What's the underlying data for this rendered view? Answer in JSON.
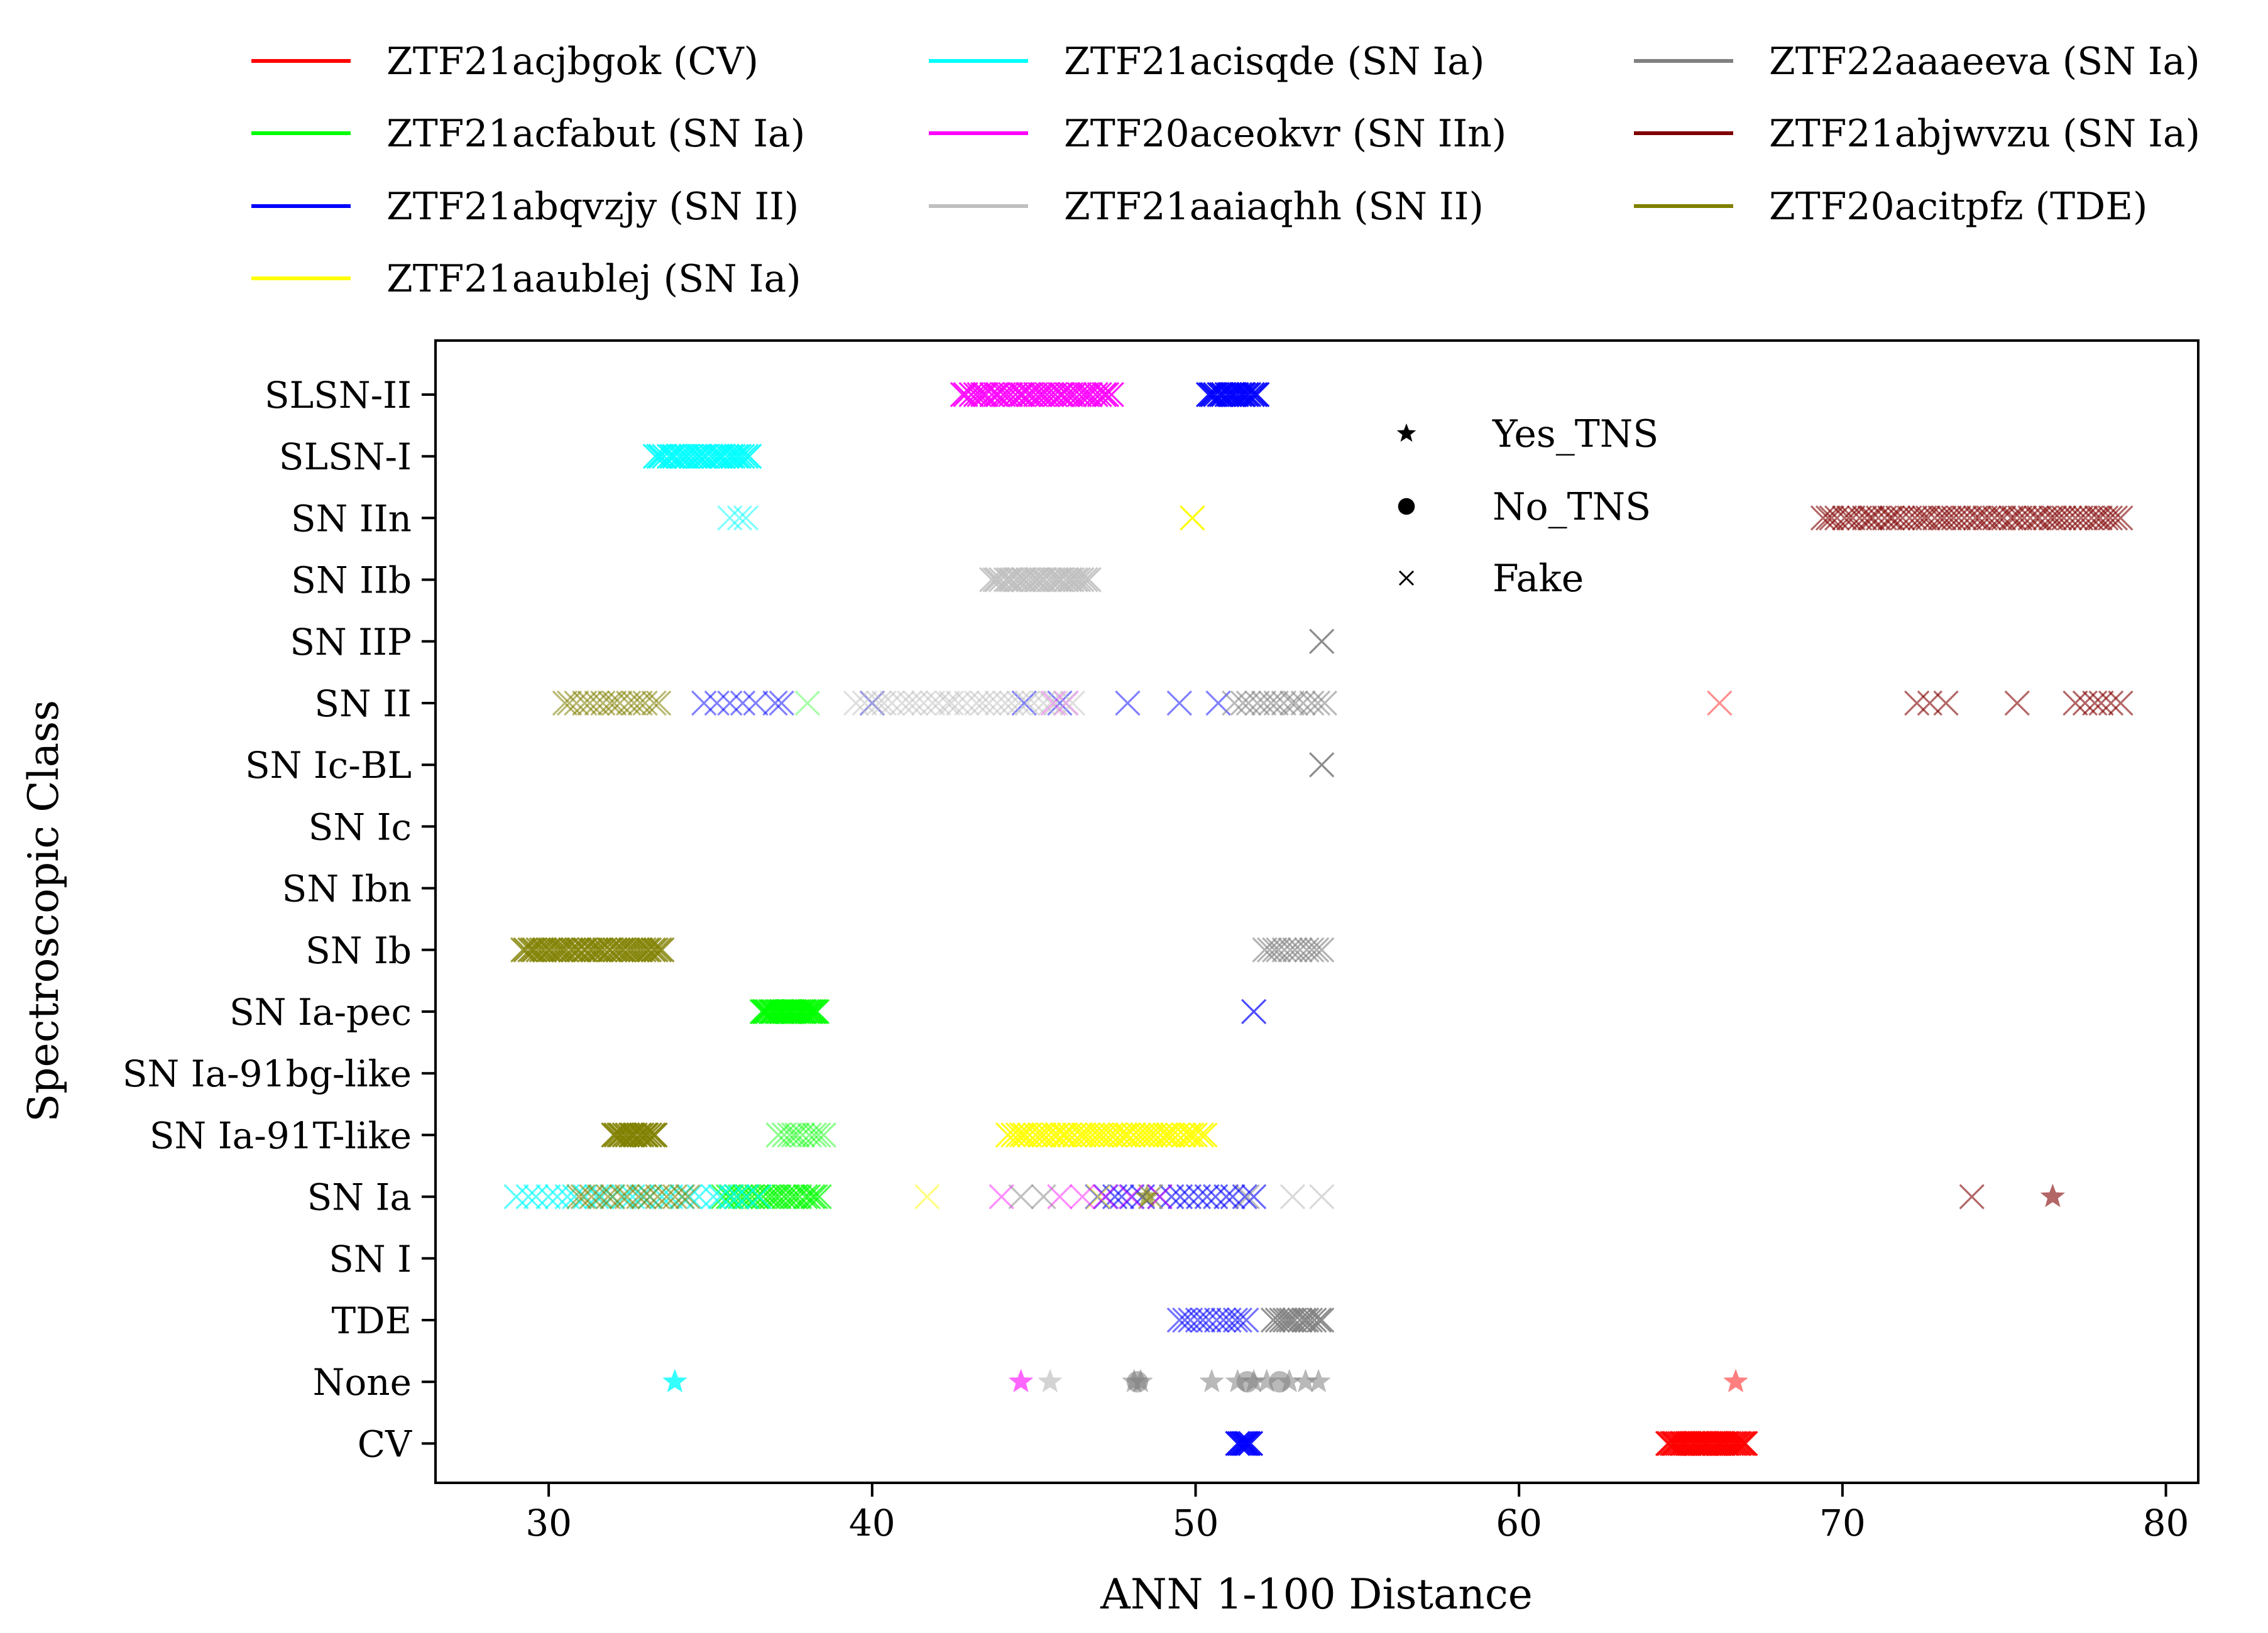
{
  "chart_data": {
    "type": "scatter",
    "title": "",
    "xlabel": "ANN 1-100 Distance",
    "ylabel": "Spectroscopic Class",
    "xlim": [
      26.5,
      81
    ],
    "xticks": [
      30,
      40,
      50,
      60,
      70,
      80
    ],
    "categories": [
      "CV",
      "None",
      "TDE",
      "SN I",
      "SN Ia",
      "SN Ia-91T-like",
      "SN Ia-91bg-like",
      "SN Ia-pec",
      "SN Ib",
      "SN Ibn",
      "SN Ic",
      "SN Ic-BL",
      "SN II",
      "SN IIP",
      "SN IIb",
      "SN IIn",
      "SLSN-I",
      "SLSN-II"
    ],
    "grid": false,
    "legend_position": "top",
    "marker_legend": [
      {
        "label": "Yes_TNS",
        "marker": "star"
      },
      {
        "label": "No_TNS",
        "marker": "circle"
      },
      {
        "label": "Fake",
        "marker": "x"
      }
    ],
    "series": [
      {
        "name": "ZTF21acjbgok (CV)",
        "color": "#ff0000",
        "points": [
          {
            "class": "CV",
            "x_range": [
              64.6,
              67.0
            ],
            "n": 40,
            "marker": "x",
            "alpha": 0.9
          },
          {
            "class": "SN II",
            "x_values": [
              66.2
            ],
            "marker": "x",
            "alpha": 0.45
          },
          {
            "class": "None",
            "x_values": [
              66.7
            ],
            "marker": "star",
            "alpha": 0.5
          }
        ]
      },
      {
        "name": "ZTF21acfabut (SN Ia)",
        "color": "#00ff00",
        "points": [
          {
            "class": "SN Ia-pec",
            "x_range": [
              36.6,
              38.3
            ],
            "n": 28,
            "marker": "x",
            "alpha": 0.9
          },
          {
            "class": "SN Ia-91T-like",
            "x_range": [
              37.1,
              38.5
            ],
            "n": 10,
            "marker": "x",
            "alpha": 0.45
          },
          {
            "class": "SN Ia",
            "x_range": [
              35.4,
              38.4
            ],
            "n": 25,
            "marker": "x",
            "alpha": 0.7
          },
          {
            "class": "SN II",
            "x_values": [
              38.0
            ],
            "marker": "x",
            "alpha": 0.35
          }
        ]
      },
      {
        "name": "ZTF21abqvzjy (SN II)",
        "color": "#0000ff",
        "points": [
          {
            "class": "SLSN-II",
            "x_range": [
              50.4,
              51.9
            ],
            "n": 20,
            "marker": "x",
            "alpha": 0.9
          },
          {
            "class": "SN II",
            "x_values": [
              34.8,
              35.2,
              35.6,
              36.0,
              36.4,
              37.0,
              37.2,
              40.0,
              44.7,
              45.8,
              47.9,
              49.5,
              50.7
            ],
            "marker": "x",
            "alpha": 0.5
          },
          {
            "class": "SN Ia-pec",
            "x_values": [
              51.8
            ],
            "marker": "x",
            "alpha": 0.7
          },
          {
            "class": "SN Ia",
            "x_range": [
              46.9,
              51.8
            ],
            "n": 18,
            "marker": "x",
            "alpha": 0.6
          },
          {
            "class": "TDE",
            "x_range": [
              49.5,
              51.6
            ],
            "n": 12,
            "marker": "x",
            "alpha": 0.55
          },
          {
            "class": "CV",
            "x_range": [
              51.3,
              51.7
            ],
            "n": 8,
            "marker": "x",
            "alpha": 0.9
          }
        ]
      },
      {
        "name": "ZTF21aaublej (SN Ia)",
        "color": "#ffff00",
        "points": [
          {
            "class": "SN IIn",
            "x_values": [
              49.9
            ],
            "marker": "x",
            "alpha": 0.95
          },
          {
            "class": "SN Ia-91T-like",
            "x_range": [
              44.2,
              50.3
            ],
            "n": 45,
            "marker": "x",
            "alpha": 0.9
          },
          {
            "class": "SN Ia",
            "x_values": [
              41.7,
              47.0,
              48.6
            ],
            "marker": "x",
            "alpha": 0.5
          }
        ]
      },
      {
        "name": "ZTF21acisqde (SN Ia)",
        "color": "#00ffff",
        "points": [
          {
            "class": "SLSN-I",
            "x_range": [
              33.3,
              36.2
            ],
            "n": 30,
            "marker": "x",
            "alpha": 0.9
          },
          {
            "class": "SN IIn",
            "x_values": [
              35.6,
              35.9,
              36.1
            ],
            "marker": "x",
            "alpha": 0.5
          },
          {
            "class": "SN Ia",
            "x_range": [
              29.0,
              36.5
            ],
            "n": 26,
            "marker": "x",
            "alpha": 0.65
          },
          {
            "class": "None",
            "x_values": [
              33.9
            ],
            "marker": "star",
            "alpha": 0.8
          }
        ]
      },
      {
        "name": "ZTF20aceokvr (SN IIn)",
        "color": "#ff00ff",
        "points": [
          {
            "class": "SLSN-II",
            "x_range": [
              42.8,
              47.4
            ],
            "n": 38,
            "marker": "x",
            "alpha": 0.9
          },
          {
            "class": "SN II",
            "x_values": [
              45.6,
              46.0
            ],
            "marker": "x",
            "alpha": 0.35
          },
          {
            "class": "SN Ia",
            "x_values": [
              44.0,
              45.8,
              46.5,
              47.2,
              48.0,
              48.9
            ],
            "marker": "x",
            "alpha": 0.45
          },
          {
            "class": "None",
            "x_values": [
              44.6
            ],
            "marker": "star",
            "alpha": 0.6
          }
        ]
      },
      {
        "name": "ZTF21aaiaqhh (SN II)",
        "color": "#c0c0c0",
        "points": [
          {
            "class": "SN IIb",
            "x_range": [
              43.7,
              46.7
            ],
            "n": 30,
            "marker": "x",
            "alpha": 0.9
          },
          {
            "class": "SN II",
            "x_range": [
              39.5,
              46.2
            ],
            "n": 30,
            "marker": "x",
            "alpha": 0.5
          },
          {
            "class": "SN Ia",
            "x_values": [
              53.0,
              53.9
            ],
            "marker": "x",
            "alpha": 0.6
          },
          {
            "class": "None",
            "x_values": [
              45.5
            ],
            "marker": "star",
            "alpha": 0.7
          }
        ]
      },
      {
        "name": "ZTF22aaaeeva (SN Ia)",
        "color": "#808080",
        "points": [
          {
            "class": "SN IIP",
            "x_values": [
              53.9
            ],
            "marker": "x",
            "alpha": 0.9
          },
          {
            "class": "SN Ic-BL",
            "x_values": [
              53.9
            ],
            "marker": "x",
            "alpha": 0.9
          },
          {
            "class": "SN II",
            "x_range": [
              51.2,
              54.0
            ],
            "n": 14,
            "marker": "x",
            "alpha": 0.55
          },
          {
            "class": "SN Ib",
            "x_range": [
              52.1,
              53.9
            ],
            "n": 12,
            "marker": "x",
            "alpha": 0.6
          },
          {
            "class": "SN Ia",
            "x_values": [
              44.6,
              45.3,
              51.6
            ],
            "marker": "x",
            "alpha": 0.5
          },
          {
            "class": "TDE",
            "x_range": [
              52.4,
              53.9
            ],
            "n": 14,
            "marker": "x",
            "alpha": 0.85
          },
          {
            "class": "None",
            "x_values": [
              48.1,
              48.3,
              50.5,
              51.3,
              51.8,
              52.2,
              52.9,
              53.4,
              53.8
            ],
            "marker": "star",
            "alpha": 0.55
          },
          {
            "class": "None",
            "x_values": [
              48.2,
              51.6,
              52.6
            ],
            "marker": "circle",
            "alpha": 0.55
          }
        ]
      },
      {
        "name": "ZTF21abjwvzu (SN Ia)",
        "color": "#800000",
        "points": [
          {
            "class": "SN IIn",
            "x_range": [
              69.4,
              78.6
            ],
            "n": 60,
            "marker": "x",
            "alpha": 0.6
          },
          {
            "class": "SN II",
            "x_values": [
              72.3,
              72.7,
              73.2,
              75.4,
              77.2,
              77.5,
              77.8,
              78.0,
              78.3,
              78.6
            ],
            "marker": "x",
            "alpha": 0.6
          },
          {
            "class": "SN Ia",
            "x_values": [
              74.0
            ],
            "marker": "x",
            "alpha": 0.6
          },
          {
            "class": "SN Ia",
            "x_values": [
              76.5
            ],
            "marker": "star",
            "alpha": 0.6
          }
        ]
      },
      {
        "name": "ZTF20acitpfz (TDE)",
        "color": "#808000",
        "points": [
          {
            "class": "SN II",
            "x_range": [
              30.5,
              33.4
            ],
            "n": 16,
            "marker": "x",
            "alpha": 0.55
          },
          {
            "class": "SN Ib",
            "x_range": [
              29.2,
              33.5
            ],
            "n": 45,
            "marker": "x",
            "alpha": 0.8
          },
          {
            "class": "SN Ia-91T-like",
            "x_range": [
              32.0,
              33.3
            ],
            "n": 16,
            "marker": "x",
            "alpha": 0.9
          },
          {
            "class": "SN Ia",
            "x_range": [
              30.9,
              34.3
            ],
            "n": 16,
            "marker": "x",
            "alpha": 0.55
          },
          {
            "class": "SN Ia",
            "x_values": [
              48.5
            ],
            "marker": "star",
            "alpha": 0.6
          }
        ]
      }
    ]
  }
}
